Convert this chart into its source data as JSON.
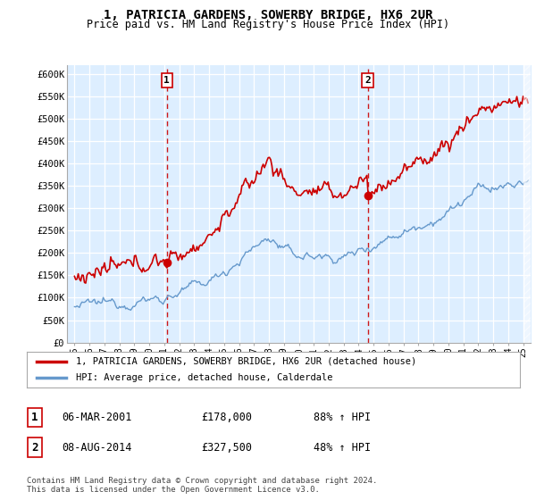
{
  "title": "1, PATRICIA GARDENS, SOWERBY BRIDGE, HX6 2UR",
  "subtitle": "Price paid vs. HM Land Registry's House Price Index (HPI)",
  "ylabel_ticks": [
    "£0",
    "£50K",
    "£100K",
    "£150K",
    "£200K",
    "£250K",
    "£300K",
    "£350K",
    "£400K",
    "£450K",
    "£500K",
    "£550K",
    "£600K"
  ],
  "ytick_values": [
    0,
    50000,
    100000,
    150000,
    200000,
    250000,
    300000,
    350000,
    400000,
    450000,
    500000,
    550000,
    600000
  ],
  "ylim": [
    0,
    620000
  ],
  "xlim_start": 1994.5,
  "xlim_end": 2025.5,
  "sale1_year": 2001.18,
  "sale1_price": 178000,
  "sale2_year": 2014.6,
  "sale2_price": 327500,
  "sale1_label": "1",
  "sale2_label": "2",
  "legend_line1": "1, PATRICIA GARDENS, SOWERBY BRIDGE, HX6 2UR (detached house)",
  "legend_line2": "HPI: Average price, detached house, Calderdale",
  "table_row1": [
    "1",
    "06-MAR-2001",
    "£178,000",
    "88% ↑ HPI"
  ],
  "table_row2": [
    "2",
    "08-AUG-2014",
    "£327,500",
    "48% ↑ HPI"
  ],
  "footer": "Contains HM Land Registry data © Crown copyright and database right 2024.\nThis data is licensed under the Open Government Licence v3.0.",
  "color_red": "#cc0000",
  "color_blue": "#6699cc",
  "color_vline": "#cc0000",
  "plot_bg": "#dce9f5",
  "plot_bg_alpha": 0.35
}
